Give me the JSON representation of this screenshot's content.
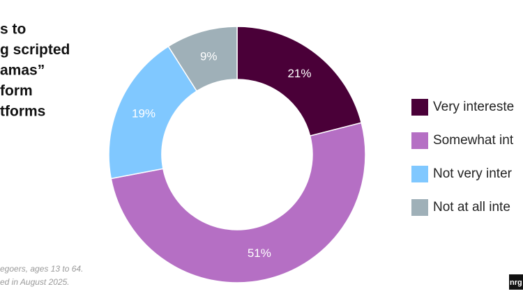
{
  "chart_data": {
    "type": "pie",
    "donut": true,
    "title": [
      "s to",
      "g scripted",
      "amas”",
      "form",
      "tforms"
    ],
    "categories": [
      "Very intereste",
      "Somewhat int",
      "Not very inter",
      "Not at all inte"
    ],
    "values": [
      21,
      51,
      19,
      9
    ],
    "value_labels": [
      "21%",
      "51%",
      "19%",
      "9%"
    ],
    "colors": [
      "#4a0038",
      "#b56fc4",
      "#80c8ff",
      "#9fb0b8"
    ],
    "footnotes": [
      "egoers, ages 13 to 64.",
      "ed in August 2025."
    ],
    "logo": "nrg"
  }
}
